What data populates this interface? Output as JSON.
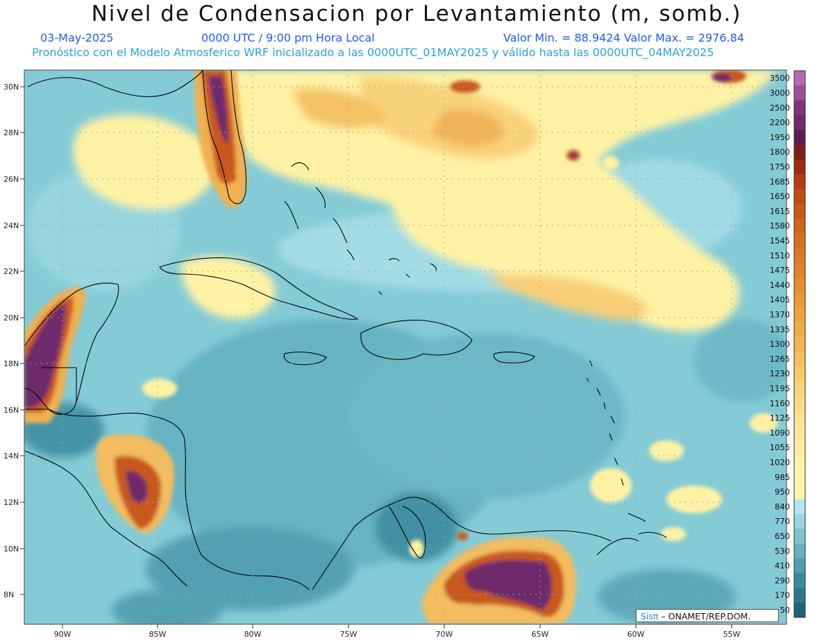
{
  "header": {
    "title": "Nivel de Condensacion por Levantamiento (m, somb.)",
    "date": "03-May-2025",
    "time": "0000 UTC / 9:00 pm Hora Local",
    "value_range": "Valor Min. = 88.9424   Valor Max. = 2976.84",
    "model_info": "Pronóstico con el Modelo Atmosferico WRF inicializado a las 0000UTC_01MAY2025 y válido hasta las  0000UTC_04MAY2025"
  },
  "axes": {
    "lat_labels": [
      "30N",
      "28N",
      "26N",
      "24N",
      "22N",
      "20N",
      "18N",
      "16N",
      "14N",
      "12N",
      "10N",
      "8N"
    ],
    "lon_labels": [
      "90W",
      "85W",
      "80W",
      "75W",
      "70W",
      "65W",
      "60W",
      "55W"
    ]
  },
  "colorbar": {
    "labels": [
      "3500",
      "3000",
      "2500",
      "2200",
      "1950",
      "1800",
      "1750",
      "1685",
      "1650",
      "1615",
      "1580",
      "1545",
      "1510",
      "1475",
      "1440",
      "1405",
      "1370",
      "1335",
      "1300",
      "1265",
      "1230",
      "1195",
      "1160",
      "1125",
      "1090",
      "1055",
      "1020",
      "985",
      "950",
      "840",
      "770",
      "650",
      "530",
      "410",
      "290",
      "170",
      "50"
    ],
    "colors": [
      "#b46ab0",
      "#9c4f95",
      "#80327a",
      "#6e2a6a",
      "#5e1d4f",
      "#7a1e1a",
      "#9b2a12",
      "#b83a12",
      "#c14b14",
      "#c85818",
      "#d0651c",
      "#d66f20",
      "#db7a25",
      "#df842a",
      "#e48e30",
      "#e89836",
      "#eba23e",
      "#eeac48",
      "#f1b653",
      "#f4c05e",
      "#f6ca6b",
      "#f8d378",
      "#f9db84",
      "#fae290",
      "#fbe89c",
      "#fcee9f",
      "#fdf2a6",
      "#fff3ad",
      "#fff4a6",
      "#b2e6ee",
      "#98d6df",
      "#7ec4cf",
      "#67b1be",
      "#509eae",
      "#3b8b9e",
      "#2b788c",
      "#1f6378"
    ]
  },
  "credit": {
    "logo": "Sisπ",
    "text": " –  ONAMET/REP.DOM."
  }
}
